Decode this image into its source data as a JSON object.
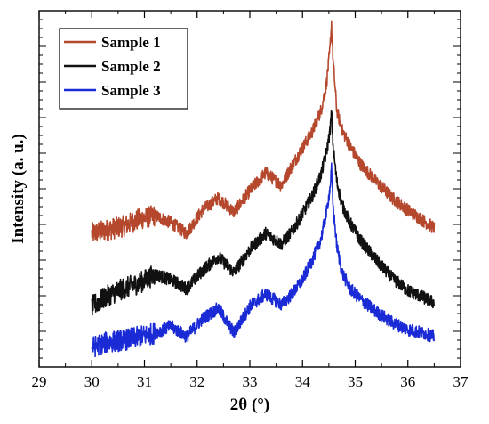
{
  "chart_data": {
    "type": "line",
    "title": "",
    "xlabel": "2θ (°)",
    "ylabel": "Intensity (a. u.)",
    "xlim": [
      29,
      37
    ],
    "ylim": [
      0,
      1
    ],
    "x_ticks": [
      "29",
      "30",
      "31",
      "32",
      "33",
      "34",
      "35",
      "36",
      "37"
    ],
    "y_ticks_labeled": false,
    "grid": false,
    "legend_position": "top-left",
    "series": [
      {
        "name": "Sample 1",
        "color": "#b5472d",
        "x": [
          30.0,
          30.3,
          30.6,
          30.9,
          31.2,
          31.5,
          31.8,
          32.1,
          32.4,
          32.7,
          33.0,
          33.3,
          33.6,
          33.8,
          34.0,
          34.2,
          34.35,
          34.45,
          34.52,
          34.55,
          34.58,
          34.65,
          34.75,
          34.9,
          35.1,
          35.4,
          35.7,
          36.0,
          36.3,
          36.5
        ],
        "values": [
          0.375,
          0.385,
          0.395,
          0.415,
          0.425,
          0.405,
          0.375,
          0.44,
          0.475,
          0.435,
          0.495,
          0.545,
          0.51,
          0.565,
          0.615,
          0.665,
          0.72,
          0.79,
          0.89,
          0.965,
          0.86,
          0.72,
          0.665,
          0.62,
          0.57,
          0.52,
          0.475,
          0.44,
          0.41,
          0.39
        ]
      },
      {
        "name": "Sample 2",
        "color": "#111111",
        "x": [
          30.0,
          30.3,
          30.6,
          30.9,
          31.2,
          31.5,
          31.8,
          32.1,
          32.4,
          32.7,
          33.0,
          33.3,
          33.6,
          33.8,
          34.0,
          34.2,
          34.35,
          34.45,
          34.52,
          34.55,
          34.58,
          34.65,
          34.75,
          34.9,
          35.1,
          35.4,
          35.7,
          36.0,
          36.3,
          36.5
        ],
        "values": [
          0.17,
          0.2,
          0.22,
          0.235,
          0.26,
          0.245,
          0.22,
          0.27,
          0.31,
          0.265,
          0.33,
          0.375,
          0.345,
          0.38,
          0.43,
          0.485,
          0.54,
          0.6,
          0.66,
          0.715,
          0.62,
          0.52,
          0.455,
          0.405,
          0.355,
          0.3,
          0.25,
          0.215,
          0.195,
          0.18
        ]
      },
      {
        "name": "Sample 3",
        "color": "#1a2bd6",
        "x": [
          30.0,
          30.3,
          30.6,
          30.9,
          31.2,
          31.5,
          31.8,
          32.1,
          32.4,
          32.7,
          33.0,
          33.3,
          33.6,
          33.8,
          34.0,
          34.2,
          34.35,
          34.45,
          34.52,
          34.55,
          34.58,
          34.65,
          34.75,
          34.9,
          35.1,
          35.4,
          35.7,
          36.0,
          36.3,
          36.5
        ],
        "values": [
          0.055,
          0.07,
          0.075,
          0.085,
          0.095,
          0.115,
          0.085,
          0.135,
          0.165,
          0.095,
          0.17,
          0.205,
          0.175,
          0.205,
          0.245,
          0.305,
          0.36,
          0.43,
          0.5,
          0.555,
          0.45,
          0.34,
          0.265,
          0.22,
          0.19,
          0.155,
          0.125,
          0.105,
          0.095,
          0.085
        ]
      }
    ]
  }
}
